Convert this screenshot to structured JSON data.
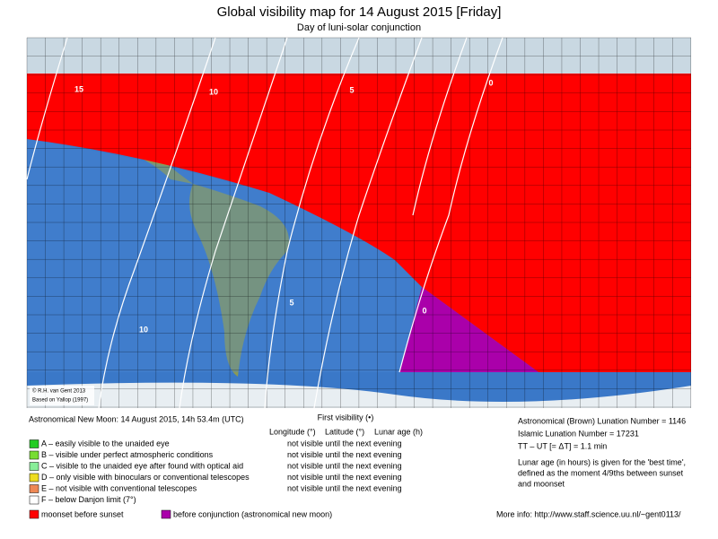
{
  "header": {
    "title": "Global visibility map for 14 August 2015 [Friday]",
    "subtitle": "Day of luni-solar conjunction"
  },
  "map": {
    "credit": [
      "© R.H. van Gent 2013",
      "Based on Yallop (1997)"
    ],
    "contour_labels": [
      15,
      10,
      5,
      0,
      10,
      5,
      0
    ]
  },
  "legend": {
    "new_moon": "Astronomical New Moon: 14 August 2015, 14h 53.4m (UTC)",
    "first_visibility": "First visibility (•)",
    "columns": [
      "Longitude (°)",
      "Latitude (°)",
      "Lunar age (h)"
    ],
    "categories": [
      {
        "label": "A – easily visible to the unaided eye",
        "color": "#22cc22",
        "status": "not visible until the next evening"
      },
      {
        "label": "B – visible under perfect atmospheric conditions",
        "color": "#77dd33",
        "status": "not visible until the next evening"
      },
      {
        "label": "C – visible to the unaided eye after found with optical aid",
        "color": "#88ee99",
        "status": "not visible until the next evening"
      },
      {
        "label": "D – only visible with binoculars or conventional telescopes",
        "color": "#eedd22",
        "status": "not visible until the next evening"
      },
      {
        "label": "E – not visible with conventional telescopes",
        "color": "#ee8855",
        "status": "not visible until the next evening"
      },
      {
        "label": "F – below Danjon limit (7°)",
        "color": "#ffffff"
      }
    ],
    "moonset": {
      "label": "moonset before sunset",
      "color": "#ff0000"
    },
    "conjunction": {
      "label": "before conjunction (astronomical new moon)",
      "color": "#aa00aa"
    }
  },
  "info": {
    "lines": [
      "Astronomical (Brown) Lunation Number = 1146",
      "Islamic Lunation Number = 17231",
      "TT – UT [= ΔT] = 1.1 min"
    ],
    "note": [
      "Lunar age (in hours) is given for the 'best time',",
      "defined as the moment 4/9ths between sunset",
      "and moonset"
    ],
    "more": "More info: http://www.staff.science.uu.nl/~gent0113/"
  }
}
